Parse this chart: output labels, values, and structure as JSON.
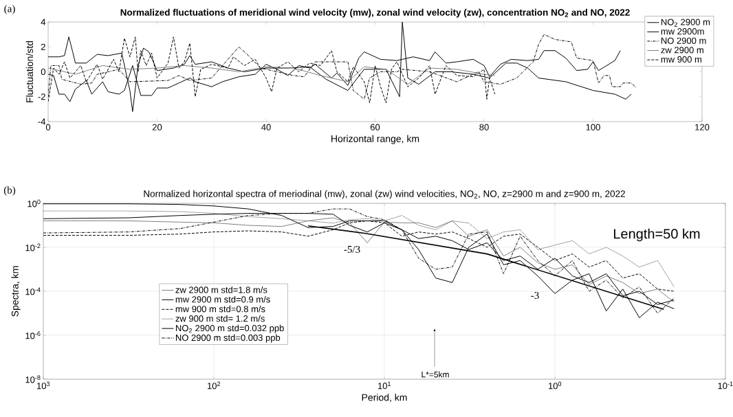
{
  "chart_data": [
    {
      "type": "line",
      "title": "Normalized fluctuations of meridional wind velocity (mw), zonal wind velocity (zw), concentration NO$_{2}$ and NO, 2022",
      "xlabel": "Horizontal range, km",
      "ylabel": "Fluctuation/std",
      "xlim": [
        0,
        120
      ],
      "ylim": [
        -4,
        4
      ],
      "xticks": [
        0,
        20,
        40,
        60,
        80,
        100,
        120
      ],
      "yticks": [
        -4,
        -2,
        0,
        2,
        4
      ],
      "legend": "top right",
      "annotations": [
        "(a)"
      ],
      "series": [
        {
          "name": "NO$_{2}$ 2900 m",
          "color": "#000000",
          "line_style": "solid",
          "x": [
            0,
            1,
            2,
            3,
            4,
            5,
            7,
            8,
            10,
            11,
            13,
            14,
            15.5,
            17,
            19,
            20,
            22,
            24,
            26,
            27,
            30,
            32,
            35,
            38,
            40,
            42,
            44,
            46,
            48,
            49,
            52,
            53,
            55,
            57,
            58,
            61,
            64,
            67,
            70,
            71,
            73,
            75,
            78,
            80,
            81,
            83,
            85,
            88,
            90,
            91,
            93,
            95,
            97,
            99,
            100,
            101,
            104,
            105
          ],
          "values": [
            -0.2,
            -0.3,
            -1.8,
            -1.8,
            -2.4,
            -1.4,
            -0.7,
            -1.8,
            -0.8,
            -1.6,
            -1.8,
            -1.5,
            0.5,
            -1.9,
            -1.9,
            -1.3,
            -1.3,
            -0.9,
            -0.5,
            -0.8,
            -1.2,
            -0.8,
            -0.4,
            -0.2,
            0.6,
            0.2,
            -0.3,
            0.5,
            0.3,
            0.6,
            -0.5,
            -0.1,
            -1.1,
            1.1,
            1.6,
            1.0,
            0.9,
            1.2,
            0.9,
            1.6,
            0.7,
            0.8,
            1.0,
            0.5,
            -0.4,
            0.6,
            1.0,
            0.9,
            1.0,
            1.7,
            1.7,
            1.1,
            0.1,
            0.2,
            0.8,
            0.1,
            0.9,
            1.7
          ]
        },
        {
          "name": "mw 2900m",
          "color": "#000000",
          "line_style": "solid",
          "x": [
            0,
            2,
            3,
            3.8,
            4.5,
            5,
            7,
            9,
            11,
            13.5,
            15,
            15.5,
            16.5,
            17.5,
            18.5,
            20,
            23,
            25,
            26,
            27,
            30,
            33,
            36,
            40,
            44,
            48,
            51,
            55,
            58,
            62,
            64.5,
            65,
            66,
            68,
            71,
            74,
            78,
            81,
            84,
            86,
            88,
            90,
            95,
            100,
            104,
            106,
            107
          ],
          "values": [
            1.2,
            1.2,
            1.3,
            2.8,
            1.6,
            0.7,
            0.7,
            1.4,
            1.3,
            1.5,
            -1.5,
            -3.2,
            0.5,
            1.9,
            1.6,
            0.1,
            0.3,
            0.6,
            1.3,
            0.6,
            0.8,
            0.3,
            0.0,
            0.3,
            0.3,
            0.4,
            -0.6,
            -1.5,
            0.2,
            0.2,
            -2.0,
            4.0,
            -0.5,
            -1.0,
            0.0,
            0.0,
            -0.2,
            -0.5,
            0.7,
            0.7,
            0.3,
            -0.5,
            -0.8,
            -1.5,
            -1.8,
            -2.2,
            -1.8
          ]
        },
        {
          "name": "NO 2900 m",
          "color": "#000000",
          "line_style": "dashdot",
          "x": [
            0,
            0.5,
            2,
            2.5,
            6,
            8,
            9,
            13,
            15,
            22,
            24,
            26,
            30,
            33,
            35,
            37,
            39,
            45,
            47,
            49,
            55,
            56,
            58,
            59,
            61,
            64,
            65,
            70,
            75,
            79,
            80,
            83,
            86,
            89,
            90,
            91,
            93,
            96,
            97,
            100,
            101,
            102,
            103,
            103.5,
            105,
            105.5,
            107,
            108
          ],
          "values": [
            -2.0,
            0.5,
            0.5,
            -0.6,
            -1.0,
            -0.9,
            -0.2,
            0.2,
            -0.8,
            -0.7,
            -0.3,
            -0.7,
            -0.5,
            1.0,
            2.0,
            1.2,
            0.3,
            -0.3,
            -0.4,
            0.8,
            0.8,
            -1.5,
            -2.2,
            -0.5,
            0.0,
            0.0,
            0.2,
            0.0,
            -0.8,
            0.0,
            -0.8,
            -1.0,
            -0.5,
            0.8,
            2.2,
            3.0,
            2.6,
            2.4,
            1.1,
            0.9,
            -0.9,
            -0.3,
            -0.3,
            -1.2,
            -1.2,
            -0.9,
            -0.9,
            -1.3
          ]
        },
        {
          "name": "zw 2900 m",
          "color": "#808080",
          "line_style": "solid",
          "x": [
            0,
            5,
            10,
            15,
            20,
            25,
            30,
            35,
            40,
            45,
            50,
            55,
            58,
            62,
            66,
            70,
            75,
            80,
            82
          ],
          "values": [
            0.3,
            -0.2,
            0.5,
            0.2,
            0.3,
            0.5,
            0.3,
            0.0,
            0.4,
            0.3,
            -0.3,
            -0.8,
            0.4,
            0.2,
            -1.0,
            0.3,
            0.2,
            -0.2,
            -0.3
          ]
        },
        {
          "name": "mw 900 m",
          "color": "#000000",
          "line_style": "dashed",
          "x": [
            0,
            1,
            2,
            3,
            4,
            6,
            7,
            9,
            10,
            12,
            13,
            14,
            15,
            16,
            16.5,
            17,
            18,
            19,
            20,
            22,
            23,
            24,
            25,
            26,
            27,
            28,
            30,
            33,
            34,
            36,
            38,
            40,
            41,
            42,
            44,
            46,
            48,
            50,
            52,
            53,
            55,
            56,
            58,
            59,
            60,
            61,
            62,
            63,
            64,
            66,
            68,
            70,
            71,
            73,
            75,
            78,
            80,
            80.5,
            81,
            82
          ],
          "values": [
            -2.4,
            0.3,
            -0.2,
            0.8,
            -0.5,
            0.5,
            -0.8,
            0.6,
            -0.6,
            1.0,
            0.0,
            2.7,
            1.2,
            2.8,
            0.0,
            1.7,
            0.5,
            1.5,
            -0.5,
            0.7,
            2.8,
            0.3,
            0.8,
            2.3,
            -2.0,
            0.2,
            0.6,
            0.3,
            1.2,
            0.5,
            1.0,
            -0.5,
            -1.6,
            0.3,
            0.8,
            0.0,
            0.7,
            0.5,
            1.7,
            0.0,
            -0.8,
            0.4,
            -0.8,
            -2.5,
            0.5,
            -1.2,
            -2.5,
            0.2,
            0.8,
            -1.2,
            -0.5,
            0.5,
            -1.8,
            0.5,
            -0.3,
            -0.4,
            0.2,
            -2.2,
            -0.5,
            -1.8
          ]
        }
      ]
    },
    {
      "type": "line",
      "title": "Normalized horizontal spectra of meriodinal (mw), zonal (zw) wind velocities, NO$_{2}$, NO, z=2900 m and z=900 m, 2022",
      "xlabel": "Period, km",
      "ylabel": "Spectra, km",
      "log": "xy",
      "grid": true,
      "legend": "left",
      "xlim": [
        1000,
        0.1
      ],
      "ylim": [
        1e-08,
        1
      ],
      "xticks": [
        {
          "value": 1000,
          "label": "10$^{3}$"
        },
        {
          "value": 100,
          "label": "10$^{2}$"
        },
        {
          "value": 10,
          "label": "10$^{1}$"
        },
        {
          "value": 1,
          "label": "10$^{0}$"
        },
        {
          "value": 0.1,
          "label": "10$^{-1}$"
        }
      ],
      "yticks": [
        {
          "value": 1e-08,
          "label": "10$^{-8}$"
        },
        {
          "value": 1e-06,
          "label": "10$^{-6}$"
        },
        {
          "value": 0.0001,
          "label": "10$^{-4}$"
        },
        {
          "value": 0.01,
          "label": "10$^{-2}$"
        },
        {
          "value": 1,
          "label": "10$^{0}$"
        }
      ],
      "annotations": [
        "(b)",
        "Length=50 km",
        "-5/3",
        "-3",
        "L*=5km"
      ],
      "x": [
        1000,
        316,
        158,
        100,
        63,
        40,
        28,
        20,
        16,
        12.6,
        10,
        7.9,
        6.3,
        5,
        4,
        3.2,
        2.5,
        2,
        1.6,
        1.26,
        1,
        0.79,
        0.63,
        0.5,
        0.4,
        0.32,
        0.25,
        0.2
      ],
      "series": [
        {
          "name": "zw 2900 m std=1.8 m/s",
          "color": "#808080",
          "line_style": "solid",
          "values": [
            0.16,
            0.16,
            0.14,
            0.13,
            0.1,
            0.089,
            0.16,
            0.22,
            0.13,
            0.016,
            0.14,
            0.13,
            0.13,
            0.079,
            0.16,
            0.032,
            0.063,
            0.004,
            0.01,
            0.002,
            0.001,
            0.0016,
            0.0002,
            0.0005,
            0.00025,
            7.9e-05,
            0.000126,
            3.2e-05
          ]
        },
        {
          "name": "mw 2900 m std=0.9 m/s",
          "color": "#000000",
          "line_style": "solid",
          "values": [
            0.95,
            0.95,
            0.89,
            0.76,
            0.56,
            0.28,
            0.079,
            0.089,
            0.16,
            0.16,
            0.16,
            0.063,
            0.025,
            0.032,
            0.02,
            0.0079,
            0.016,
            0.0025,
            0.004,
            0.001,
            0.0032,
            0.0005,
            0.00025,
            0.00063,
            6.3e-05,
            0.0001,
            2.5e-05,
            4e-05
          ]
        },
        {
          "name": "mw 900 m std=0.8 m/s",
          "color": "#000000",
          "line_style": "dashed",
          "values": [
            0.035,
            0.035,
            0.04,
            0.05,
            0.056,
            0.05,
            0.032,
            0.063,
            0.13,
            0.16,
            0.13,
            0.032,
            0.05,
            0.04,
            0.05,
            0.025,
            0.01,
            0.032,
            0.04,
            0.01,
            0.0025,
            0.005,
            0.00126,
            0.0025,
            0.0004,
            0.00063,
            0.000126,
            0.0001
          ]
        },
        {
          "name": "zw 900 m std= 1.2 m/s",
          "color": "#606060",
          "line_style": "dotted",
          "values": [
            0.45,
            0.45,
            0.42,
            0.35,
            0.25,
            0.2,
            0.16,
            0.126,
            0.18,
            0.2,
            0.16,
            0.28,
            0.1,
            0.063,
            0.16,
            0.126,
            0.025,
            0.05,
            0.063,
            0.0079,
            0.0126,
            0.02,
            0.005,
            0.01,
            0.004,
            0.00126,
            0.0025,
            0.00016
          ]
        },
        {
          "name": "NO$_{2}$ 2900 m std=0.032 ppb",
          "color": "#000000",
          "line_style": "solid",
          "values": [
            0.2,
            0.22,
            0.28,
            0.32,
            0.35,
            0.35,
            0.35,
            0.32,
            0.1,
            0.05,
            0.13,
            0.063,
            0.0079,
            0.0004,
            0.00025,
            0.01,
            0.04,
            0.0016,
            0.0025,
            0.0005,
            7.9e-05,
            0.00032,
            0.00063,
            1.26e-05,
            0.000126,
            6.3e-06,
            3.2e-05,
            1.6e-05
          ]
        },
        {
          "name": "NO 2900 m std=0.003 ppb",
          "color": "#000000",
          "line_style": "dashdot",
          "values": [
            0.045,
            0.05,
            0.071,
            0.14,
            0.28,
            0.35,
            0.35,
            0.56,
            0.56,
            0.25,
            0.18,
            0.063,
            0.0032,
            0.001,
            0.00126,
            0.04,
            0.05,
            0.00063,
            0.032,
            0.0025,
            0.0005,
            0.0025,
            0.0001,
            0.00032,
            5e-05,
            0.000158,
            1e-05,
            5e-05
          ]
        },
        {
          "type": "line",
          "color": "#000000",
          "line_style": "solid",
          "x": [
            28,
            12.9,
            2.5,
            0.23
          ],
          "values": [
            0.095,
            0.043,
            0.005,
            1.5e-05
          ]
        }
      ]
    }
  ]
}
